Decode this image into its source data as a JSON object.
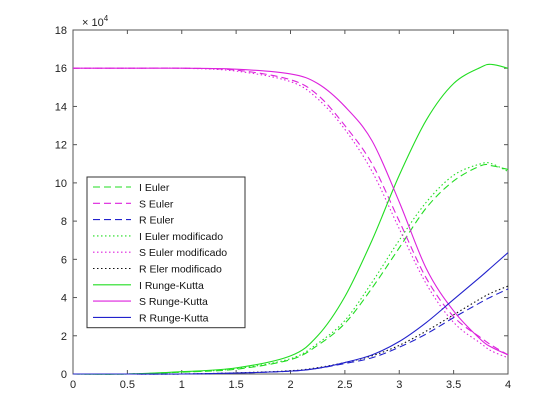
{
  "chart_data": {
    "type": "line",
    "title": "",
    "xlabel": "",
    "ylabel": "",
    "xlim": [
      0,
      4
    ],
    "ylim": [
      0,
      18
    ],
    "y_exponent_label": "× 10",
    "y_exponent_power": "4",
    "x_ticks": [
      "0",
      "0.5",
      "1",
      "1.5",
      "2",
      "2.5",
      "3",
      "3.5",
      "4"
    ],
    "y_ticks": [
      "0",
      "2",
      "4",
      "6",
      "8",
      "10",
      "12",
      "14",
      "16",
      "18"
    ],
    "grid": false,
    "legend_position": "left",
    "colors": {
      "I": "#22dd22",
      "S": "#dd22dd",
      "R": "#2222cc"
    },
    "x": [
      0,
      0.5,
      1.0,
      1.5,
      2.0,
      2.25,
      2.5,
      2.75,
      3.0,
      3.25,
      3.5,
      3.75,
      3.85,
      4.0
    ],
    "series": [
      {
        "name": "I Euler",
        "color": "#22dd22",
        "dash": "dashed",
        "values": [
          0.0,
          0.0,
          0.1,
          0.25,
          0.75,
          1.5,
          2.65,
          4.5,
          6.6,
          8.7,
          10.1,
          10.9,
          10.9,
          10.7
        ]
      },
      {
        "name": "S Euler",
        "color": "#dd22dd",
        "dash": "dashed",
        "values": [
          16.0,
          16.0,
          16.0,
          15.9,
          15.4,
          14.6,
          13.0,
          11.0,
          8.0,
          5.0,
          3.0,
          1.9,
          1.5,
          1.0
        ]
      },
      {
        "name": "R Euler",
        "color": "#2222cc",
        "dash": "dashed",
        "values": [
          0.0,
          0.0,
          0.0,
          0.05,
          0.15,
          0.3,
          0.55,
          0.85,
          1.4,
          2.1,
          2.95,
          3.75,
          4.05,
          4.45
        ]
      },
      {
        "name": "I Euler modificado",
        "color": "#22dd22",
        "dash": "dotted",
        "values": [
          0.0,
          0.0,
          0.1,
          0.28,
          0.8,
          1.6,
          2.8,
          4.8,
          7.0,
          9.0,
          10.4,
          11.0,
          11.0,
          10.6
        ]
      },
      {
        "name": "S Euler modificado",
        "color": "#dd22dd",
        "dash": "dotted",
        "values": [
          16.0,
          16.0,
          16.0,
          15.85,
          15.3,
          14.4,
          12.8,
          10.6,
          7.6,
          4.7,
          2.7,
          1.6,
          1.2,
          0.85
        ]
      },
      {
        "name": "R Eler modificado",
        "color": "#111111",
        "dash": "dotted",
        "values": [
          0.0,
          0.0,
          0.0,
          0.06,
          0.17,
          0.33,
          0.6,
          0.95,
          1.5,
          2.25,
          3.1,
          3.95,
          4.25,
          4.6
        ]
      },
      {
        "name": "I Runge-Kutta",
        "color": "#22dd22",
        "dash": "solid",
        "values": [
          0.0,
          0.0,
          0.12,
          0.32,
          0.95,
          2.0,
          4.05,
          7.0,
          10.4,
          13.3,
          15.2,
          16.05,
          16.2,
          16.0
        ]
      },
      {
        "name": "S Runge-Kutta",
        "color": "#dd22dd",
        "dash": "solid",
        "values": [
          16.0,
          16.0,
          16.0,
          15.95,
          15.7,
          15.2,
          14.0,
          12.2,
          9.0,
          5.5,
          3.3,
          1.8,
          1.4,
          1.0
        ]
      },
      {
        "name": "R Runge-Kutta",
        "color": "#2222cc",
        "dash": "solid",
        "values": [
          0.0,
          0.0,
          0.0,
          0.05,
          0.15,
          0.3,
          0.6,
          1.0,
          1.7,
          2.7,
          3.9,
          5.1,
          5.6,
          6.35
        ]
      }
    ]
  }
}
